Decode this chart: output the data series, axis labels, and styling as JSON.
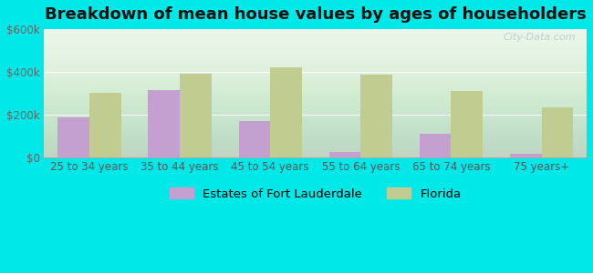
{
  "title": "Breakdown of mean house values by ages of householders",
  "categories": [
    "25 to 34 years",
    "35 to 44 years",
    "45 to 54 years",
    "55 to 64 years",
    "65 to 74 years",
    "75 years+"
  ],
  "estates_values": [
    185000,
    315000,
    170000,
    25000,
    110000,
    15000
  ],
  "florida_values": [
    300000,
    390000,
    420000,
    385000,
    310000,
    235000
  ],
  "estates_color": "#c4a0d0",
  "florida_color": "#c0cc90",
  "background_color": "#00e8e8",
  "ylim": [
    0,
    600000
  ],
  "yticks": [
    0,
    200000,
    400000,
    600000
  ],
  "ytick_labels": [
    "$0",
    "$200k",
    "$400k",
    "$600k"
  ],
  "bar_width": 0.35,
  "legend_label_estates": "Estates of Fort Lauderdale",
  "legend_label_florida": "Florida",
  "watermark": "City-Data.com",
  "title_fontsize": 13,
  "tick_fontsize": 8.5,
  "legend_fontsize": 9.5
}
